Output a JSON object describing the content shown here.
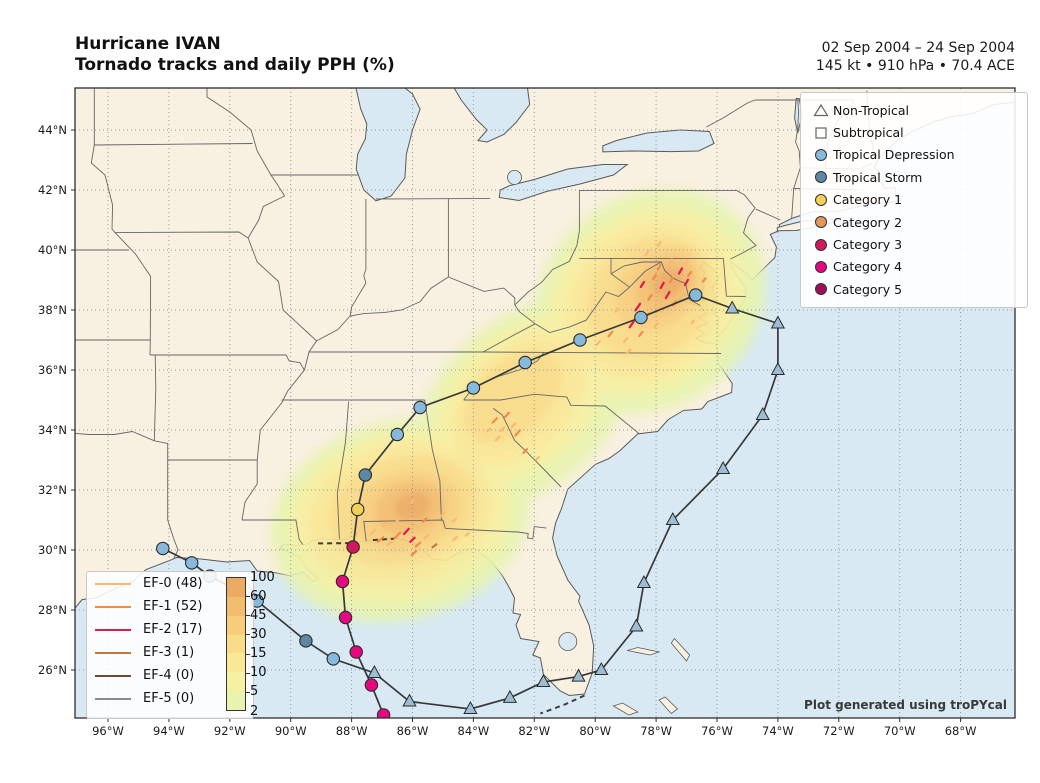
{
  "header": {
    "title_line1": "Hurricane IVAN",
    "title_line2": "Tornado tracks and daily PPH (%)",
    "date_range": "02 Sep 2004 – 24 Sep 2004",
    "stats": "145 kt • 910 hPa • 70.4 ACE"
  },
  "watermark": "Plot generated using troPYcal",
  "axes": {
    "x_tick_labels": [
      "96°W",
      "94°W",
      "92°W",
      "90°W",
      "88°W",
      "86°W",
      "84°W",
      "82°W",
      "80°W",
      "78°W",
      "76°W",
      "74°W",
      "72°W",
      "70°W",
      "68°W"
    ],
    "y_tick_labels": [
      "44°N",
      "42°N",
      "40°N",
      "38°N",
      "36°N",
      "34°N",
      "32°N",
      "30°N",
      "28°N",
      "26°N"
    ],
    "lon_ticks": [
      -96,
      -94,
      -92,
      -90,
      -88,
      -86,
      -84,
      -82,
      -80,
      -78,
      -76,
      -74,
      -72,
      -70,
      -68
    ],
    "lat_ticks": [
      44,
      42,
      40,
      38,
      36,
      34,
      32,
      30,
      28,
      26
    ]
  },
  "legend": {
    "items": [
      {
        "label": "Non-Tropical",
        "shape": "triangle",
        "fill": "#ffffff",
        "edge": "#666666"
      },
      {
        "label": "Subtropical",
        "shape": "square",
        "fill": "#ffffff",
        "edge": "#666666"
      },
      {
        "label": "Tropical Depression",
        "shape": "circle",
        "fill": "#87b9dc",
        "edge": "#333333"
      },
      {
        "label": "Tropical Storm",
        "shape": "circle",
        "fill": "#5e87a5",
        "edge": "#333333"
      },
      {
        "label": "Category 1",
        "shape": "circle",
        "fill": "#f2d15b",
        "edge": "#333333"
      },
      {
        "label": "Category 2",
        "shape": "circle",
        "fill": "#e5995c",
        "edge": "#333333"
      },
      {
        "label": "Category 3",
        "shape": "circle",
        "fill": "#d2195f",
        "edge": "#333333"
      },
      {
        "label": "Category 4",
        "shape": "circle",
        "fill": "#e50880",
        "edge": "#333333"
      },
      {
        "label": "Category 5",
        "shape": "circle",
        "fill": "#9e0f55",
        "edge": "#333333"
      }
    ]
  },
  "ef_legend": {
    "items": [
      {
        "label": "EF-0 (48)",
        "color": "#fbb871",
        "key": "ef0"
      },
      {
        "label": "EF-1 (52)",
        "color": "#ee8c4a",
        "key": "ef1"
      },
      {
        "label": "EF-2 (17)",
        "color": "#e0194f",
        "key": "ef2"
      },
      {
        "label": "EF-3 (1)",
        "color": "#bd7a45",
        "key": "ef3"
      },
      {
        "label": "EF-4 (0)",
        "color": "#6b4a38",
        "key": "ef4"
      },
      {
        "label": "EF-5 (0)",
        "color": "#8a8a8a",
        "key": "ef5"
      }
    ]
  },
  "colorbar": {
    "tick_labels": [
      "100",
      "60",
      "45",
      "30",
      "15",
      "10",
      "5",
      "2"
    ],
    "segment_colors_top_to_bottom": [
      "#ecab62",
      "#f2bd6e",
      "#f7cd7c",
      "#f9dc88",
      "#f9e896",
      "#f6f0a2",
      "#e7f3ae"
    ]
  },
  "chart_data": {
    "type": "map-track",
    "title": "Hurricane IVAN — Tornado tracks and daily PPH (%)",
    "map_extent": {
      "lon_min": -97.1,
      "lon_max": -66.2,
      "lat_min": 24.4,
      "lat_max": 45.4
    },
    "pph_levels": [
      2,
      5,
      10,
      15,
      30,
      45,
      60,
      100
    ],
    "map_triangle_fill": "#9dbdd4",
    "track": [
      {
        "lon": -86.95,
        "lat": 24.5,
        "cat": "cat4"
      },
      {
        "lon": -87.35,
        "lat": 25.5,
        "cat": "cat4"
      },
      {
        "lon": -87.85,
        "lat": 26.6,
        "cat": "cat4"
      },
      {
        "lon": -88.2,
        "lat": 27.75,
        "cat": "cat4"
      },
      {
        "lon": -88.3,
        "lat": 28.95,
        "cat": "cat4"
      },
      {
        "lon": -87.95,
        "lat": 30.1,
        "cat": "cat3"
      },
      {
        "lon": -87.8,
        "lat": 31.35,
        "cat": "cat1"
      },
      {
        "lon": -87.55,
        "lat": 32.5,
        "cat": "ts"
      },
      {
        "lon": -86.5,
        "lat": 33.85,
        "cat": "td"
      },
      {
        "lon": -85.75,
        "lat": 34.75,
        "cat": "td"
      },
      {
        "lon": -84.0,
        "lat": 35.4,
        "cat": "td"
      },
      {
        "lon": -82.3,
        "lat": 36.25,
        "cat": "td"
      },
      {
        "lon": -80.5,
        "lat": 37.0,
        "cat": "td"
      },
      {
        "lon": -78.5,
        "lat": 37.75,
        "cat": "td"
      },
      {
        "lon": -76.7,
        "lat": 38.5,
        "cat": "td"
      },
      {
        "lon": -75.5,
        "lat": 38.05,
        "cat": "nt"
      },
      {
        "lon": -74.0,
        "lat": 37.55,
        "cat": "nt"
      },
      {
        "lon": -74.0,
        "lat": 36.0,
        "cat": "nt"
      },
      {
        "lon": -74.5,
        "lat": 34.5,
        "cat": "nt"
      },
      {
        "lon": -75.8,
        "lat": 32.7,
        "cat": "nt"
      },
      {
        "lon": -77.45,
        "lat": 31.0,
        "cat": "nt"
      },
      {
        "lon": -78.4,
        "lat": 28.9,
        "cat": "nt"
      },
      {
        "lon": -78.65,
        "lat": 27.45,
        "cat": "nt"
      },
      {
        "lon": -79.8,
        "lat": 26.0,
        "cat": "nt"
      },
      {
        "lon": -80.55,
        "lat": 25.78,
        "cat": "nt"
      },
      {
        "lon": -81.7,
        "lat": 25.6,
        "cat": "nt"
      },
      {
        "lon": -82.8,
        "lat": 25.07,
        "cat": "nt"
      },
      {
        "lon": -84.1,
        "lat": 24.7,
        "cat": "nt"
      },
      {
        "lon": -86.1,
        "lat": 24.95,
        "cat": "nt"
      },
      {
        "lon": -87.25,
        "lat": 25.9,
        "cat": "nt"
      },
      {
        "lon": -88.6,
        "lat": 26.37,
        "cat": "td"
      },
      {
        "lon": -89.5,
        "lat": 26.97,
        "cat": "ts"
      },
      {
        "lon": -91.1,
        "lat": 28.3,
        "cat": "td"
      },
      {
        "lon": -92.65,
        "lat": 29.13,
        "cat": "td"
      },
      {
        "lon": -93.25,
        "lat": 29.57,
        "cat": "td"
      },
      {
        "lon": -94.2,
        "lat": 30.05,
        "cat": "td"
      }
    ],
    "tornadoes": [
      [
        -87.05,
        30.35,
        40,
        7,
        "ef1"
      ],
      [
        -86.75,
        30.22,
        35,
        5,
        "ef0"
      ],
      [
        -86.5,
        30.48,
        45,
        8,
        "ef1"
      ],
      [
        -86.2,
        30.62,
        48,
        7,
        "ef2"
      ],
      [
        -86.0,
        30.34,
        45,
        6,
        "ef2"
      ],
      [
        -85.82,
        30.18,
        40,
        6,
        "ef1"
      ],
      [
        -85.55,
        30.44,
        42,
        5,
        "ef0"
      ],
      [
        -86.9,
        30.86,
        45,
        5,
        "ef0"
      ],
      [
        -86.45,
        31.02,
        42,
        6,
        "ef0"
      ],
      [
        -85.28,
        30.14,
        38,
        5,
        "ef3"
      ],
      [
        -84.6,
        30.38,
        40,
        5,
        "ef0"
      ],
      [
        -84.2,
        30.52,
        42,
        4,
        "ef0"
      ],
      [
        -85.0,
        31.2,
        45,
        5,
        "ef0"
      ],
      [
        -86.0,
        31.62,
        45,
        4,
        "ef0"
      ],
      [
        -84.62,
        31.0,
        45,
        4,
        "ef0"
      ],
      [
        -85.95,
        29.9,
        40,
        6,
        "ef1"
      ],
      [
        -87.3,
        30.6,
        42,
        5,
        "ef0"
      ],
      [
        -85.6,
        31.0,
        44,
        5,
        "ef1"
      ],
      [
        -83.3,
        34.32,
        46,
        6,
        "ef1"
      ],
      [
        -83.05,
        34.02,
        45,
        5,
        "ef0"
      ],
      [
        -82.9,
        34.5,
        47,
        6,
        "ef1"
      ],
      [
        -82.68,
        34.16,
        45,
        5,
        "ef0"
      ],
      [
        -83.2,
        33.72,
        45,
        5,
        "ef0"
      ],
      [
        -82.3,
        33.3,
        46,
        5,
        "ef1"
      ],
      [
        -81.9,
        33.05,
        45,
        4,
        "ef0"
      ],
      [
        -82.55,
        33.9,
        50,
        7,
        "ef1"
      ],
      [
        -83.5,
        34.0,
        45,
        4,
        "ef0"
      ],
      [
        -79.9,
        36.9,
        50,
        5,
        "ef0"
      ],
      [
        -79.5,
        37.2,
        50,
        6,
        "ef1"
      ],
      [
        -79.0,
        37.0,
        50,
        5,
        "ef0"
      ],
      [
        -78.8,
        37.52,
        55,
        7,
        "ef2"
      ],
      [
        -78.5,
        37.2,
        52,
        5,
        "ef1"
      ],
      [
        -78.3,
        37.8,
        55,
        6,
        "ef1"
      ],
      [
        -78.0,
        37.5,
        55,
        5,
        "ef0"
      ],
      [
        -78.6,
        38.1,
        56,
        8,
        "ef2"
      ],
      [
        -78.2,
        38.42,
        55,
        6,
        "ef1"
      ],
      [
        -77.9,
        38.1,
        50,
        5,
        "ef0"
      ],
      [
        -77.62,
        38.5,
        60,
        7,
        "ef2"
      ],
      [
        -77.4,
        38.22,
        55,
        5,
        "ef1"
      ],
      [
        -77.8,
        38.82,
        60,
        6,
        "ef2"
      ],
      [
        -77.5,
        39.0,
        60,
        5,
        "ef1"
      ],
      [
        -77.2,
        38.7,
        55,
        5,
        "ef0"
      ],
      [
        -77.0,
        38.92,
        60,
        6,
        "ef2"
      ],
      [
        -77.9,
        39.42,
        60,
        5,
        "ef1"
      ],
      [
        -77.52,
        39.62,
        58,
        5,
        "ef0"
      ],
      [
        -77.2,
        39.3,
        60,
        6,
        "ef2"
      ],
      [
        -76.9,
        39.2,
        55,
        5,
        "ef1"
      ],
      [
        -78.3,
        39.9,
        58,
        5,
        "ef0"
      ],
      [
        -77.9,
        40.2,
        58,
        5,
        "ef0"
      ],
      [
        -77.0,
        39.6,
        55,
        4,
        "ef0"
      ],
      [
        -76.6,
        38.6,
        55,
        5,
        "ef0"
      ],
      [
        -76.42,
        39.0,
        55,
        4,
        "ef1"
      ],
      [
        -78.9,
        36.62,
        50,
        5,
        "ef0"
      ],
      [
        -79.3,
        38.0,
        52,
        4,
        "ef0"
      ],
      [
        -76.8,
        37.6,
        50,
        4,
        "ef0"
      ],
      [
        -78.45,
        38.85,
        57,
        6,
        "ef2"
      ],
      [
        -78.05,
        39.1,
        57,
        5,
        "ef1"
      ]
    ],
    "pph_blobs": [
      {
        "level": 2,
        "color_index": 6,
        "blur": 6,
        "shapes": [
          [
            -86.4,
            31.0,
            4.3,
            3.3,
            -15
          ],
          [
            -82.3,
            34.9,
            4.0,
            2.8,
            -42
          ],
          [
            -78.2,
            38.3,
            4.0,
            3.5,
            -40
          ]
        ]
      },
      {
        "level": 5,
        "color_index": 5,
        "blur": 5,
        "shapes": [
          [
            -86.4,
            31.1,
            3.7,
            2.8,
            -15
          ],
          [
            -82.4,
            35.0,
            3.3,
            2.2,
            -42
          ],
          [
            -78.3,
            38.3,
            3.4,
            2.9,
            -40
          ]
        ]
      },
      {
        "level": 10,
        "color_index": 4,
        "blur": 5,
        "shapes": [
          [
            -86.4,
            31.2,
            3.1,
            2.3,
            -15
          ],
          [
            -82.5,
            35.0,
            2.6,
            1.7,
            -42
          ],
          [
            -78.3,
            38.3,
            2.8,
            2.4,
            -40
          ]
        ]
      },
      {
        "level": 15,
        "color_index": 3,
        "blur": 4,
        "shapes": [
          [
            -86.3,
            31.3,
            2.5,
            1.8,
            -15
          ],
          [
            -82.7,
            35.1,
            1.9,
            1.2,
            -42
          ],
          [
            -78.2,
            38.4,
            2.2,
            1.9,
            -40
          ]
        ]
      },
      {
        "level": 30,
        "color_index": 2,
        "blur": 4,
        "shapes": [
          [
            -86.2,
            31.3,
            1.8,
            1.3,
            -15
          ],
          [
            -77.9,
            38.7,
            1.6,
            1.2,
            -40
          ]
        ]
      },
      {
        "level": 45,
        "color_index": 1,
        "blur": 3,
        "shapes": [
          [
            -86.1,
            31.4,
            1.15,
            0.85,
            -15
          ],
          [
            -77.7,
            38.85,
            1.05,
            0.8,
            -40
          ]
        ]
      },
      {
        "level": 60,
        "color_index": 0,
        "blur": 3,
        "shapes": [
          [
            -86.0,
            31.45,
            0.6,
            0.45,
            -15
          ],
          [
            -77.6,
            38.9,
            0.55,
            0.45,
            -40
          ]
        ]
      }
    ]
  }
}
